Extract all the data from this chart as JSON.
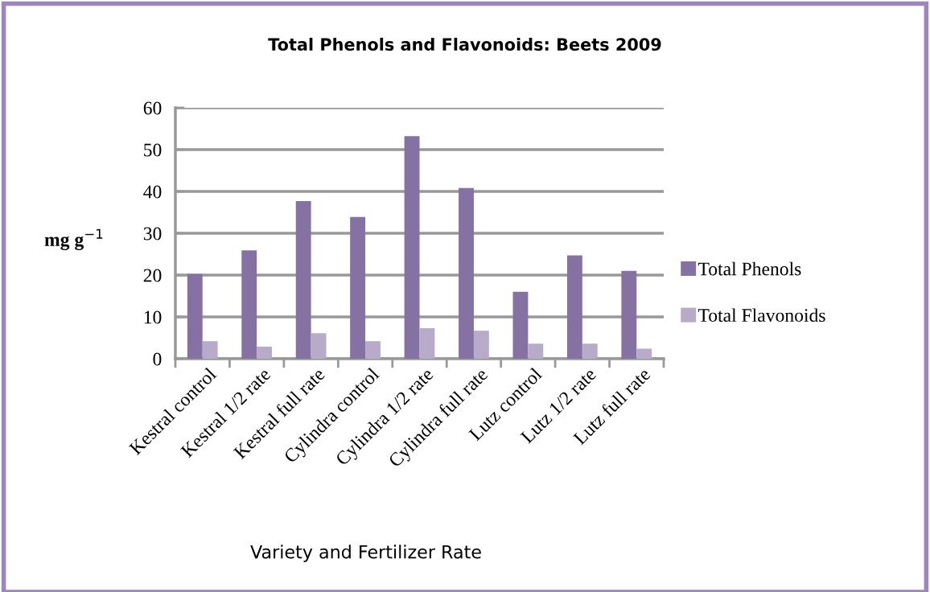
{
  "chart_data": {
    "type": "bar",
    "title": "Total Phenols and Flavonoids: Beets 2009",
    "xlabel": "Variety and Fertilizer Rate",
    "ylabel": "mg g$^{−1}$",
    "categories": [
      "Kestral control",
      "Kestral 1/2 rate",
      "Kestral full rate",
      "Cylindra control",
      "Cylindra 1/2 rate",
      "Cylindra full rate",
      "Lutz control",
      "Lutz 1/2 rate",
      "Lutz full rate"
    ],
    "series": [
      {
        "name": "Total Phenols",
        "color": "#8572a3",
        "values": [
          20.3,
          25.9,
          37.7,
          33.9,
          53.2,
          40.8,
          16.0,
          24.7,
          21.0
        ]
      },
      {
        "name": "Total Flavonoids",
        "color": "#b8aac9",
        "values": [
          4.2,
          2.9,
          6.1,
          4.2,
          7.3,
          6.7,
          3.6,
          3.6,
          2.4
        ]
      }
    ],
    "ylim": [
      0,
      60
    ],
    "yticks": [
      0,
      10,
      20,
      30,
      40,
      50,
      60
    ],
    "grid": "y",
    "legend": "right"
  }
}
